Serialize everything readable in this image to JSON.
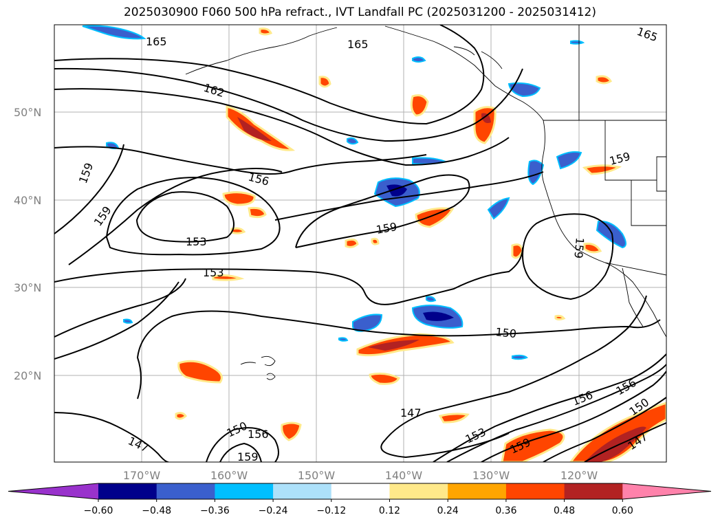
{
  "title": "2025030900 F060 500 hPa refract., IVT Landfall PC (2025031200 - 2025031412)",
  "lat_ticks": [
    "50°N",
    "40°N",
    "30°N",
    "20°N"
  ],
  "lon_ticks": [
    "170°W",
    "160°W",
    "150°W",
    "140°W",
    "130°W",
    "120°W"
  ],
  "contour_labels": [
    "165",
    "165",
    "165",
    "162",
    "159",
    "159",
    "156",
    "159",
    "153",
    "153",
    "159",
    "150",
    "147",
    "153",
    "156",
    "156",
    "150",
    "159",
    "147",
    "147",
    "150",
    "156",
    "159",
    "159",
    "153"
  ],
  "colorbar": {
    "colors": [
      "#9932CC",
      "#00008B",
      "#3A5FCD",
      "#00BFFF",
      "#ADE1FA",
      "#FFFFFF",
      "#FFE98A",
      "#FFA500",
      "#FF4500",
      "#B22222",
      "#FF82AB"
    ],
    "labels": [
      "−0.60",
      "−0.48",
      "−0.36",
      "−0.24",
      "−0.12",
      "0.12",
      "0.24",
      "0.36",
      "0.48",
      "0.60"
    ]
  }
}
